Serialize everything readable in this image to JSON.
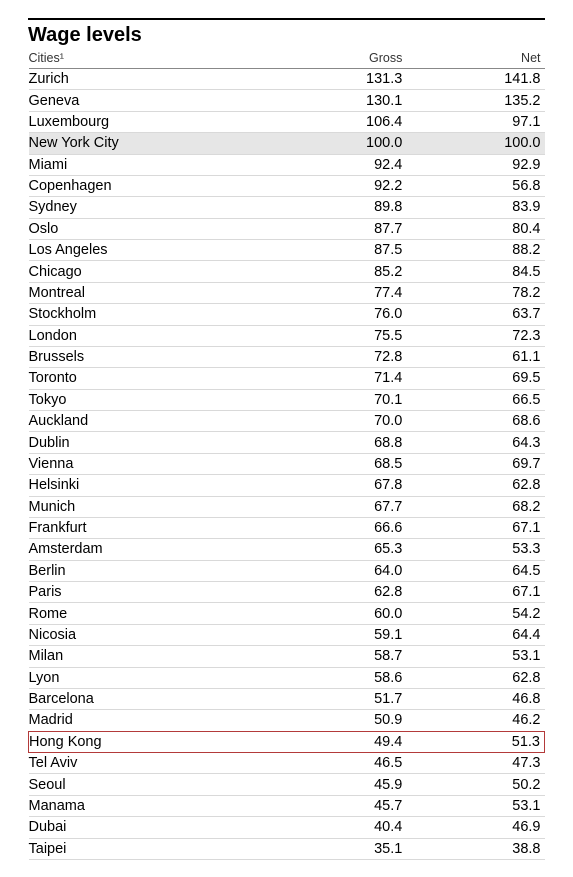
{
  "title": "Wage levels",
  "columns": {
    "city": "Cities¹",
    "gross": "Gross",
    "net": "Net"
  },
  "shaded_city": "New York City",
  "highlight_city": "Hong Kong",
  "rows": [
    {
      "city": "Zurich",
      "gross": "131.3",
      "net": "141.8"
    },
    {
      "city": "Geneva",
      "gross": "130.1",
      "net": "135.2"
    },
    {
      "city": "Luxembourg",
      "gross": "106.4",
      "net": "97.1"
    },
    {
      "city": "New York City",
      "gross": "100.0",
      "net": "100.0"
    },
    {
      "city": "Miami",
      "gross": "92.4",
      "net": "92.9"
    },
    {
      "city": "Copenhagen",
      "gross": "92.2",
      "net": "56.8"
    },
    {
      "city": "Sydney",
      "gross": "89.8",
      "net": "83.9"
    },
    {
      "city": "Oslo",
      "gross": "87.7",
      "net": "80.4"
    },
    {
      "city": "Los Angeles",
      "gross": "87.5",
      "net": "88.2"
    },
    {
      "city": "Chicago",
      "gross": "85.2",
      "net": "84.5"
    },
    {
      "city": "Montreal",
      "gross": "77.4",
      "net": "78.2"
    },
    {
      "city": "Stockholm",
      "gross": "76.0",
      "net": "63.7"
    },
    {
      "city": "London",
      "gross": "75.5",
      "net": "72.3"
    },
    {
      "city": "Brussels",
      "gross": "72.8",
      "net": "61.1"
    },
    {
      "city": "Toronto",
      "gross": "71.4",
      "net": "69.5"
    },
    {
      "city": "Tokyo",
      "gross": "70.1",
      "net": "66.5"
    },
    {
      "city": "Auckland",
      "gross": "70.0",
      "net": "68.6"
    },
    {
      "city": "Dublin",
      "gross": "68.8",
      "net": "64.3"
    },
    {
      "city": "Vienna",
      "gross": "68.5",
      "net": "69.7"
    },
    {
      "city": "Helsinki",
      "gross": "67.8",
      "net": "62.8"
    },
    {
      "city": "Munich",
      "gross": "67.7",
      "net": "68.2"
    },
    {
      "city": "Frankfurt",
      "gross": "66.6",
      "net": "67.1"
    },
    {
      "city": "Amsterdam",
      "gross": "65.3",
      "net": "53.3"
    },
    {
      "city": "Berlin",
      "gross": "64.0",
      "net": "64.5"
    },
    {
      "city": "Paris",
      "gross": "62.8",
      "net": "67.1"
    },
    {
      "city": "Rome",
      "gross": "60.0",
      "net": "54.2"
    },
    {
      "city": "Nicosia",
      "gross": "59.1",
      "net": "64.4"
    },
    {
      "city": "Milan",
      "gross": "58.7",
      "net": "53.1"
    },
    {
      "city": "Lyon",
      "gross": "58.6",
      "net": "62.8"
    },
    {
      "city": "Barcelona",
      "gross": "51.7",
      "net": "46.8"
    },
    {
      "city": "Madrid",
      "gross": "50.9",
      "net": "46.2"
    },
    {
      "city": "Hong Kong",
      "gross": "49.4",
      "net": "51.3"
    },
    {
      "city": "Tel Aviv",
      "gross": "46.5",
      "net": "47.3"
    },
    {
      "city": "Seoul",
      "gross": "45.9",
      "net": "50.2"
    },
    {
      "city": "Manama",
      "gross": "45.7",
      "net": "53.1"
    },
    {
      "city": "Dubai",
      "gross": "40.4",
      "net": "46.9"
    },
    {
      "city": "Taipei",
      "gross": "35.1",
      "net": "38.8"
    }
  ]
}
